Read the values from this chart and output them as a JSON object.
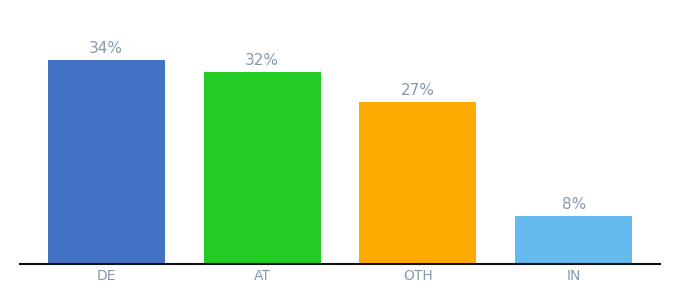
{
  "categories": [
    "DE",
    "AT",
    "OTH",
    "IN"
  ],
  "values": [
    34,
    32,
    27,
    8
  ],
  "bar_colors": [
    "#4472c4",
    "#22cc22",
    "#ffaa00",
    "#66bbee"
  ],
  "label_color": "#8899aa",
  "label_fontsize": 11,
  "xlabel_fontsize": 10,
  "ylim": [
    0,
    40
  ],
  "background_color": "#ffffff",
  "bar_width": 0.75
}
